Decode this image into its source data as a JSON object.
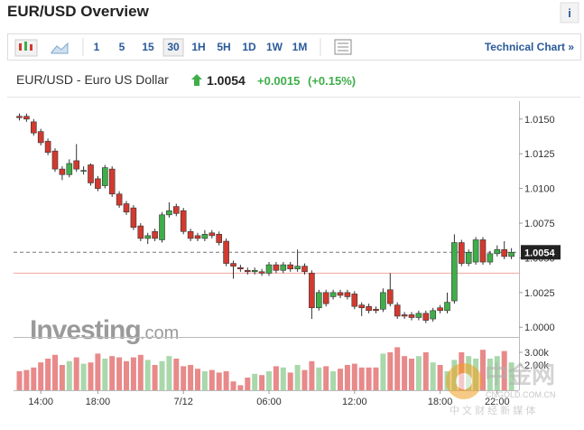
{
  "header": {
    "title": "EUR/USD Overview",
    "info": "i"
  },
  "toolbar": {
    "intervals": [
      "1",
      "5",
      "15",
      "30",
      "1H",
      "5H",
      "1D",
      "1W",
      "1M"
    ],
    "link": "Technical Chart »"
  },
  "quote": {
    "name": "EUR/USD - Euro US Dollar",
    "price": "1.0054",
    "change": "+0.0015",
    "change_pct": "(+0.15%)"
  },
  "watermarks": {
    "brand": "Investing",
    "brand_suffix": ".com",
    "cn_logo": "中金网",
    "cn_domain": "CNGOLD.COM.CN",
    "cn_tagline": "中 文 财 经 新 媒 体"
  },
  "chart_data": {
    "type": "candlestick",
    "categories": [
      null,
      null,
      null,
      "14:00",
      null,
      null,
      null,
      null,
      null,
      null,
      null,
      "18:00",
      null,
      null,
      null,
      null,
      null,
      null,
      null,
      null,
      null,
      null,
      null,
      "7/12",
      null,
      null,
      null,
      null,
      null,
      null,
      null,
      null,
      null,
      null,
      null,
      "06:00",
      null,
      null,
      null,
      null,
      null,
      null,
      null,
      null,
      null,
      null,
      null,
      "12:00",
      null,
      null,
      null,
      null,
      null,
      null,
      null,
      null,
      null,
      null,
      null,
      "18:00",
      null,
      null,
      null,
      null,
      null,
      null,
      null,
      "22:00",
      null,
      null
    ],
    "open": [
      1.0152,
      1.0152,
      1.0148,
      1.0141,
      1.0134,
      1.0127,
      1.0114,
      1.011,
      1.012,
      1.0113,
      1.0117,
      1.0107,
      1.0102,
      1.0114,
      1.0096,
      1.0089,
      1.0086,
      1.0073,
      1.0064,
      1.0069,
      1.0063,
      1.0081,
      1.0087,
      1.0084,
      1.0069,
      1.0066,
      1.0064,
      1.0068,
      1.0067,
      1.0062,
      1.0046,
      1.0043,
      1.0041,
      1.004,
      1.004,
      1.0039,
      1.0045,
      1.0041,
      1.0045,
      1.0042,
      1.0044,
      1.0039,
      1.0014,
      1.0025,
      1.0022,
      1.0025,
      1.0025,
      1.0024,
      1.0016,
      1.0015,
      1.0013,
      1.0013,
      1.0027,
      1.0016,
      1.0009,
      1.0009,
      1.0007,
      1.001,
      1.0006,
      1.0014,
      1.0012,
      1.0019,
      1.0061,
      1.0046,
      1.0047,
      1.0063,
      1.0047,
      1.0053,
      1.0056,
      1.0051
    ],
    "high": [
      1.0154,
      1.0154,
      1.015,
      1.0143,
      1.0136,
      1.0129,
      1.0116,
      1.0121,
      1.0132,
      1.0116,
      1.0118,
      1.0109,
      1.0117,
      1.0116,
      1.0098,
      1.0091,
      1.0088,
      1.0075,
      1.0068,
      1.0071,
      1.0083,
      1.009,
      1.0089,
      1.0086,
      1.0071,
      1.0068,
      1.007,
      1.007,
      1.0069,
      1.0064,
      1.0048,
      1.0045,
      1.0043,
      1.0043,
      1.0042,
      1.0047,
      1.0047,
      1.0047,
      1.0047,
      1.0056,
      1.0046,
      1.0041,
      1.0027,
      1.0027,
      1.0027,
      1.0027,
      1.0027,
      1.0026,
      1.0018,
      1.0017,
      1.0015,
      1.0028,
      1.0039,
      1.0018,
      1.0011,
      1.0011,
      1.0012,
      1.0012,
      1.0014,
      1.0016,
      1.0025,
      1.0067,
      1.0063,
      1.0056,
      1.0065,
      1.0065,
      1.0055,
      1.0059,
      1.0062,
      1.0057
    ],
    "low": [
      1.0149,
      1.0148,
      1.0138,
      1.0131,
      1.0124,
      1.0112,
      1.0106,
      1.0108,
      1.0112,
      1.011,
      1.0102,
      1.0098,
      1.01,
      1.0094,
      1.0086,
      1.0081,
      1.007,
      1.0062,
      1.006,
      1.0062,
      1.0061,
      1.0079,
      1.008,
      1.0067,
      1.0062,
      1.0062,
      1.0062,
      1.0064,
      1.0059,
      1.0044,
      1.0035,
      1.004,
      1.0038,
      1.0038,
      1.0037,
      1.0037,
      1.0039,
      1.0039,
      1.004,
      1.004,
      1.0038,
      1.0006,
      1.0012,
      1.0015,
      1.002,
      1.0021,
      1.002,
      1.0013,
      1.0008,
      1.001,
      1.001,
      1.0011,
      1.0015,
      1.0006,
      1.0006,
      1.0005,
      1.0005,
      1.0003,
      1.0004,
      1.001,
      1.001,
      1.0017,
      1.0044,
      1.0044,
      1.0045,
      1.0045,
      1.0045,
      1.0051,
      1.0049,
      1.0049
    ],
    "close": [
      1.0151,
      1.015,
      1.014,
      1.0133,
      1.0126,
      1.0114,
      1.011,
      1.0118,
      1.0114,
      1.0113,
      1.0104,
      1.01,
      1.0115,
      1.0096,
      1.0088,
      1.0083,
      1.0072,
      1.0064,
      1.0066,
      1.0064,
      1.0081,
      1.0084,
      1.0082,
      1.0069,
      1.0064,
      1.0064,
      1.0067,
      1.0066,
      1.0061,
      1.0046,
      1.0044,
      1.0042,
      1.004,
      1.0041,
      1.0039,
      1.0045,
      1.0041,
      1.0045,
      1.0042,
      1.0044,
      1.004,
      1.0014,
      1.0025,
      1.0017,
      1.0025,
      1.0023,
      1.0022,
      1.0015,
      1.0014,
      1.0012,
      1.0012,
      1.0025,
      1.0017,
      1.0008,
      1.0008,
      1.0007,
      1.001,
      1.0005,
      1.0012,
      1.0012,
      1.0018,
      1.0061,
      1.0046,
      1.0054,
      1.0063,
      1.0047,
      1.0053,
      1.0056,
      1.0051,
      1.0054
    ],
    "volume": [
      1500,
      1600,
      1800,
      2200,
      2500,
      2800,
      2000,
      2300,
      2600,
      2100,
      2200,
      2900,
      2500,
      2700,
      2600,
      2300,
      2600,
      2800,
      2400,
      2000,
      2300,
      2700,
      2500,
      1900,
      2000,
      1700,
      1500,
      1600,
      1400,
      1500,
      700,
      400,
      1000,
      1300,
      1200,
      1500,
      1900,
      1800,
      1400,
      2000,
      1600,
      2300,
      1800,
      1900,
      1500,
      1700,
      2000,
      2100,
      1800,
      1800,
      1800,
      2900,
      3000,
      3400,
      2700,
      2500,
      2700,
      3000,
      2200,
      2000,
      1500,
      2400,
      3000,
      2700,
      2500,
      3200,
      2500,
      2700,
      3100,
      2200
    ],
    "last_price": 1.0054,
    "prev_close": 1.0039,
    "up_color": "#3fae49",
    "down_color": "#d23a2f",
    "volume_up_color": "#a8d8ab",
    "volume_down_color": "#e8898a",
    "ylim": [
      0.9993,
      1.0159
    ],
    "yticks": [
      {
        "value": 1.0,
        "label": "1.0000"
      },
      1.0025,
      {
        "value": 1.005,
        "label": "1.0050"
      },
      1.0075,
      {
        "value": 1.01,
        "label": "1.0100"
      },
      1.0125,
      {
        "value": 1.015,
        "label": "1.0150"
      }
    ],
    "volume_ylim": [
      0,
      4000
    ],
    "volume_yticks": [
      {
        "value": 2000,
        "label": "2.00k"
      },
      {
        "value": 3000,
        "label": "3.00k"
      }
    ]
  }
}
